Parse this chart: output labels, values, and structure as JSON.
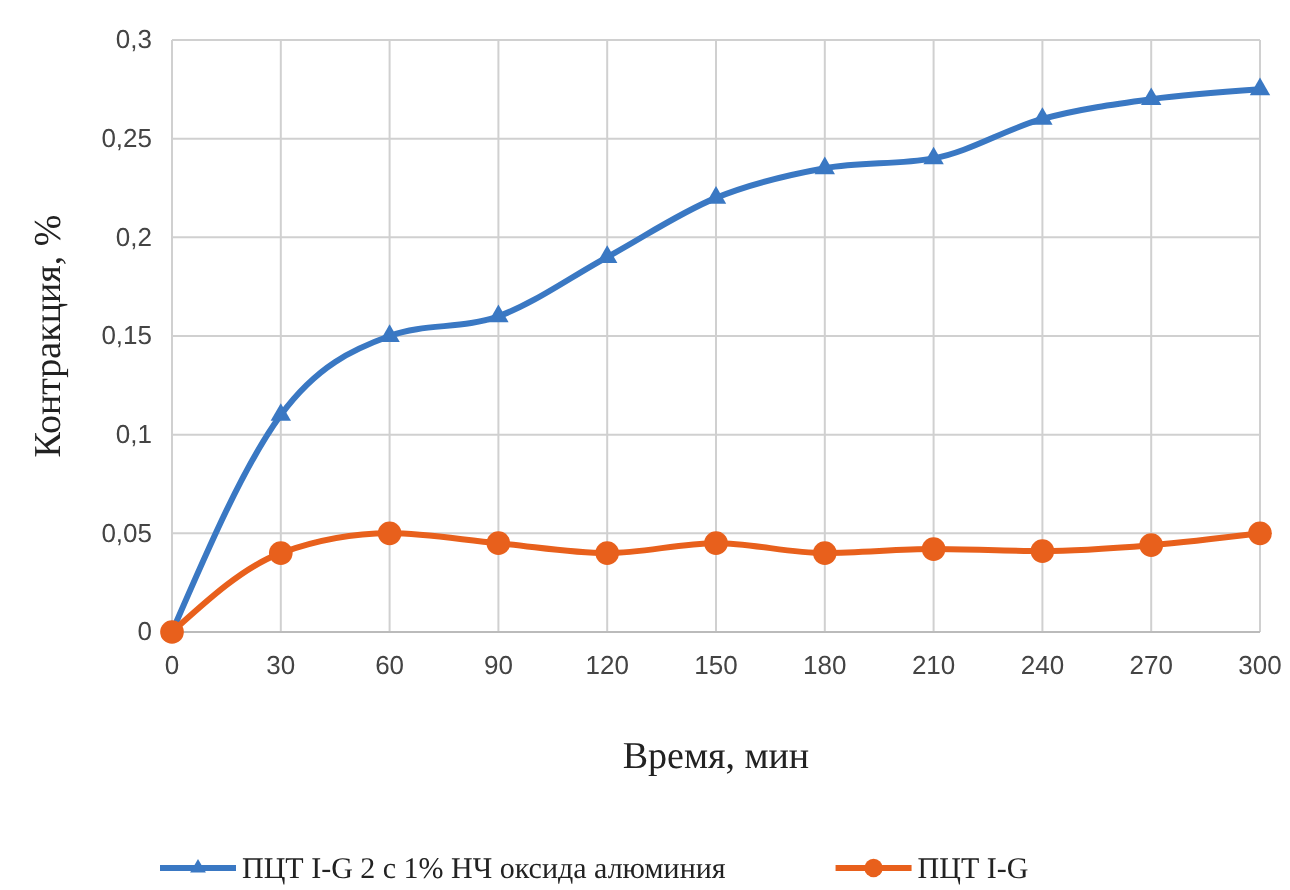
{
  "chart_data": {
    "type": "line",
    "xlabel": "Время, мин",
    "ylabel": "Контракция, %",
    "x": [
      0,
      30,
      60,
      90,
      120,
      150,
      180,
      210,
      240,
      270,
      300
    ],
    "xlim": [
      0,
      300
    ],
    "xticks": [
      0,
      30,
      60,
      90,
      120,
      150,
      180,
      210,
      240,
      270,
      300
    ],
    "ylim": [
      0,
      0.3
    ],
    "yticks": [
      {
        "value": 0,
        "label": "0"
      },
      {
        "value": 0.05,
        "label": "0,05"
      },
      {
        "value": 0.1,
        "label": "0,1"
      },
      {
        "value": 0.15,
        "label": "0,15"
      },
      {
        "value": 0.2,
        "label": "0,2"
      },
      {
        "value": 0.25,
        "label": "0,25"
      },
      {
        "value": 0.3,
        "label": "0,3"
      }
    ],
    "grid": true,
    "legend": "bottom",
    "line_style": "solid",
    "series": [
      {
        "name": "ПЦТ I-G 2 с 1% НЧ оксида алюминия",
        "color": "#3a78c3",
        "marker": "triangle",
        "values": [
          0,
          0.11,
          0.15,
          0.16,
          0.19,
          0.22,
          0.235,
          0.24,
          0.26,
          0.27,
          0.275
        ]
      },
      {
        "name": "ПЦТ I-G",
        "color": "#e8601c",
        "marker": "circle",
        "values": [
          0,
          0.04,
          0.05,
          0.045,
          0.04,
          0.045,
          0.04,
          0.042,
          0.041,
          0.044,
          0.05
        ]
      }
    ]
  }
}
